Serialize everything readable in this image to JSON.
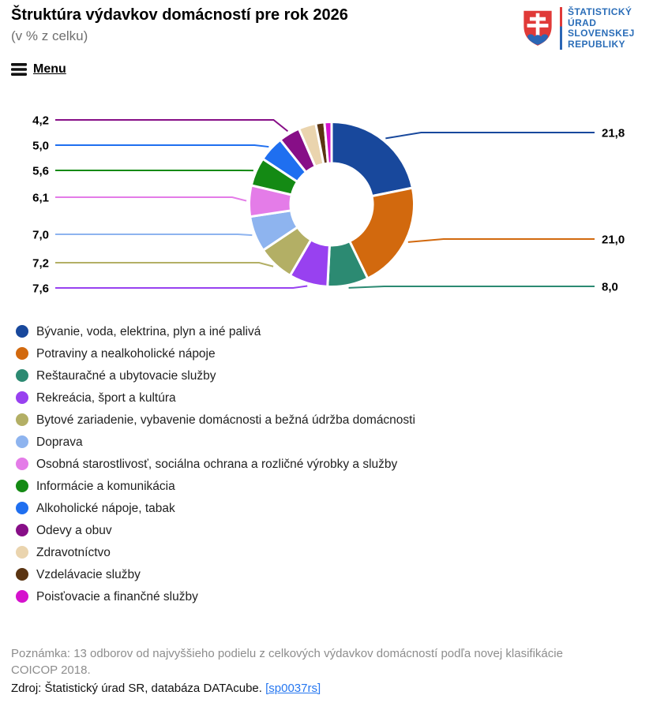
{
  "menu": {
    "label": "Menu"
  },
  "logo": {
    "lines": [
      "ŠTATISTICKÝ",
      "ÚRAD",
      "SLOVENSKEJ",
      "REPUBLIKY"
    ],
    "text_color": "#2a6db8",
    "shield_red": "#e03a38",
    "shield_blue": "#2a66b5"
  },
  "chart_data": {
    "type": "pie",
    "donut": true,
    "title": "Štruktúra výdavkov domácností pre rok 2026",
    "subtitle": "(v % z celku)",
    "unit": "% z celku",
    "legend_position": "bottom-left",
    "slices": [
      {
        "label": "Bývanie, voda, elektrina, plyn a iné palivá",
        "value": 21.8,
        "display_value": "21,8",
        "color": "#18489c"
      },
      {
        "label": "Potraviny a nealkoholické nápoje",
        "value": 21.0,
        "display_value": "21,0",
        "color": "#d2690e"
      },
      {
        "label": "Reštauračné a ubytovacie služby",
        "value": 8.0,
        "display_value": "8,0",
        "color": "#2c8a72"
      },
      {
        "label": "Rekreácia, šport a kultúra",
        "value": 7.6,
        "display_value": "7,6",
        "color": "#9841f0"
      },
      {
        "label": "Bytové zariadenie, vybavenie domácnosti a bežná údržba domácnosti",
        "value": 7.2,
        "display_value": "7,2",
        "color": "#b3af65"
      },
      {
        "label": "Doprava",
        "value": 7.0,
        "display_value": "7,0",
        "color": "#8eb4ef"
      },
      {
        "label": "Osobná starostlivosť, sociálna ochrana a rozličné výrobky a služby",
        "value": 6.1,
        "display_value": "6,1",
        "color": "#e47ce8"
      },
      {
        "label": "Informácie a komunikácia",
        "value": 5.6,
        "display_value": "5,6",
        "color": "#148a14"
      },
      {
        "label": "Alkoholické nápoje, tabak",
        "value": 5.0,
        "display_value": "5,0",
        "color": "#1f6ff0"
      },
      {
        "label": "Odevy a obuv",
        "value": 4.2,
        "display_value": "4,2",
        "color": "#870e87"
      },
      {
        "label": "Zdravotníctvo",
        "value": 3.4,
        "display_value": "",
        "color": "#ead4ae"
      },
      {
        "label": "Vzdelávacie služby",
        "value": 1.7,
        "display_value": "",
        "color": "#5a3412"
      },
      {
        "label": "Poisťovacie a finančné služby",
        "value": 1.4,
        "display_value": "",
        "color": "#d512cd"
      }
    ]
  },
  "footer": {
    "note": "Poznámka: 13 odborov od najvyššieho podielu z celkových výdavkov domácností podľa novej klasifikácie COICOP 2018.",
    "source_text": "Zdroj: Štatistický úrad SR, databáza DATAcube.",
    "source_link": "[sp0037rs]",
    "link_color": "#2677f0"
  }
}
